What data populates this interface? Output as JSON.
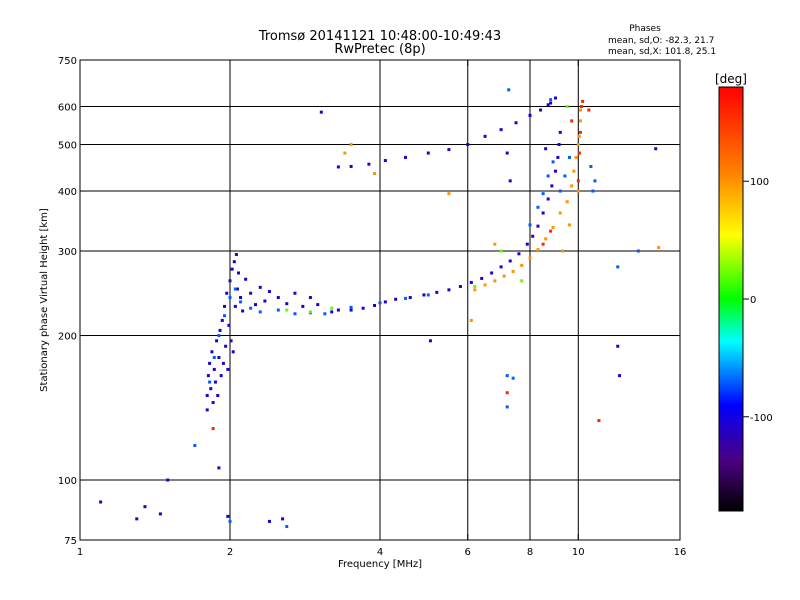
{
  "chart_data": {
    "type": "scatter",
    "title": "Tromsø 20141121 10:48:00-10:49:43",
    "subtitle": "RwPretec (8p)",
    "phase_info": {
      "heading": "Phases",
      "line1": "mean, sd,O: -82.3, 21.7",
      "line2": "mean, sd,X: 101.8, 25.1"
    },
    "xlabel": "Frequency [MHz]",
    "ylabel": "Stationary phase Virtual Height [km]",
    "xscale": "log",
    "yscale": "log",
    "xlim": [
      1,
      16
    ],
    "ylim": [
      75,
      750
    ],
    "xticks": [
      1,
      2,
      4,
      6,
      8,
      10,
      16
    ],
    "yticks": [
      75,
      100,
      200,
      300,
      400,
      500,
      600,
      750
    ],
    "grid_x": [
      2,
      4,
      6,
      8,
      10
    ],
    "grid_y": [
      100,
      200,
      300,
      400,
      500,
      600
    ],
    "colorbar": {
      "label": "[deg]",
      "range": [
        -180,
        180
      ],
      "ticks": [
        100,
        0,
        -100
      ]
    },
    "series": [
      {
        "phase": -110,
        "points": [
          [
            1.8,
            140
          ],
          [
            1.8,
            150
          ],
          [
            1.81,
            165
          ],
          [
            1.82,
            175
          ],
          [
            1.83,
            155
          ],
          [
            1.84,
            185
          ],
          [
            1.85,
            145
          ],
          [
            1.86,
            170
          ],
          [
            1.87,
            160
          ],
          [
            1.88,
            195
          ],
          [
            1.89,
            150
          ],
          [
            1.9,
            180
          ],
          [
            1.91,
            205
          ],
          [
            1.92,
            165
          ],
          [
            1.93,
            215
          ],
          [
            1.94,
            175
          ],
          [
            1.95,
            230
          ],
          [
            1.96,
            190
          ],
          [
            1.97,
            245
          ],
          [
            1.98,
            170
          ],
          [
            1.99,
            210
          ],
          [
            2.0,
            260
          ],
          [
            2.01,
            195
          ],
          [
            2.02,
            275
          ],
          [
            2.03,
            185
          ],
          [
            2.04,
            285
          ],
          [
            2.05,
            230
          ],
          [
            2.06,
            295
          ],
          [
            2.07,
            250
          ],
          [
            2.08,
            270
          ],
          [
            2.1,
            240
          ],
          [
            2.12,
            225
          ],
          [
            2.15,
            262
          ],
          [
            2.2,
            245
          ],
          [
            2.25,
            232
          ],
          [
            2.3,
            252
          ],
          [
            2.35,
            236
          ],
          [
            2.4,
            247
          ],
          [
            2.5,
            240
          ],
          [
            2.6,
            233
          ],
          [
            2.7,
            245
          ],
          [
            2.8,
            230
          ],
          [
            2.9,
            240
          ],
          [
            3.0,
            232
          ],
          [
            3.2,
            224
          ],
          [
            3.3,
            226
          ],
          [
            3.5,
            226
          ],
          [
            3.7,
            228
          ],
          [
            3.9,
            231
          ],
          [
            4.1,
            235
          ],
          [
            4.3,
            238
          ],
          [
            4.6,
            240
          ],
          [
            4.9,
            243
          ],
          [
            5.2,
            246
          ],
          [
            5.5,
            249
          ],
          [
            5.8,
            253
          ],
          [
            6.1,
            258
          ],
          [
            6.4,
            263
          ],
          [
            6.7,
            270
          ],
          [
            7.0,
            278
          ],
          [
            7.3,
            286
          ],
          [
            7.6,
            296
          ],
          [
            7.9,
            310
          ],
          [
            8.1,
            322
          ],
          [
            8.3,
            338
          ],
          [
            8.5,
            360
          ],
          [
            8.7,
            385
          ],
          [
            8.85,
            410
          ],
          [
            9.0,
            440
          ],
          [
            9.1,
            470
          ],
          [
            9.15,
            500
          ],
          [
            9.2,
            530
          ],
          [
            3.3,
            449
          ],
          [
            3.5,
            450
          ],
          [
            3.8,
            455
          ],
          [
            4.1,
            463
          ],
          [
            4.5,
            470
          ],
          [
            5.0,
            480
          ],
          [
            5.5,
            488
          ],
          [
            6.0,
            500
          ],
          [
            6.5,
            520
          ],
          [
            7.0,
            537
          ],
          [
            7.5,
            555
          ],
          [
            8.0,
            575
          ],
          [
            8.4,
            590
          ],
          [
            8.7,
            605
          ],
          [
            1.1,
            90
          ],
          [
            1.3,
            83
          ],
          [
            1.35,
            88
          ],
          [
            1.45,
            85
          ],
          [
            1.5,
            100
          ],
          [
            1.9,
            106
          ],
          [
            1.98,
            84
          ],
          [
            2.4,
            82
          ],
          [
            2.55,
            83
          ],
          [
            3.05,
            584
          ],
          [
            5.05,
            195
          ],
          [
            7.2,
            480
          ],
          [
            7.3,
            420
          ],
          [
            8.6,
            490
          ],
          [
            8.8,
            610
          ],
          [
            9.0,
            625
          ],
          [
            12.0,
            190
          ],
          [
            12.1,
            165
          ],
          [
            14.3,
            490
          ]
        ]
      },
      {
        "phase": -70,
        "points": [
          [
            1.82,
            160
          ],
          [
            1.86,
            180
          ],
          [
            1.9,
            200
          ],
          [
            1.95,
            220
          ],
          [
            2.0,
            240
          ],
          [
            2.05,
            250
          ],
          [
            2.1,
            235
          ],
          [
            2.2,
            228
          ],
          [
            2.3,
            224
          ],
          [
            2.5,
            226
          ],
          [
            2.7,
            222
          ],
          [
            2.9,
            223
          ],
          [
            3.1,
            222
          ],
          [
            3.5,
            229
          ],
          [
            4.0,
            234
          ],
          [
            4.5,
            239
          ],
          [
            5.0,
            243
          ],
          [
            8.0,
            340
          ],
          [
            8.3,
            370
          ],
          [
            8.5,
            395
          ],
          [
            8.7,
            430
          ],
          [
            8.9,
            460
          ],
          [
            9.2,
            400
          ],
          [
            9.4,
            430
          ],
          [
            9.6,
            470
          ],
          [
            10.6,
            450
          ],
          [
            10.7,
            400
          ],
          [
            10.8,
            420
          ],
          [
            1.7,
            118
          ],
          [
            2.0,
            82
          ],
          [
            2.6,
            80
          ],
          [
            7.2,
            165
          ],
          [
            7.2,
            142
          ],
          [
            7.4,
            163
          ],
          [
            7.25,
            650
          ],
          [
            8.8,
            620
          ],
          [
            13.2,
            300
          ],
          [
            12.0,
            278
          ]
        ]
      },
      {
        "phase": 20,
        "points": [
          [
            2.6,
            226
          ],
          [
            2.9,
            224
          ],
          [
            3.2,
            228
          ],
          [
            6.2,
            253
          ],
          [
            7.0,
            300
          ],
          [
            7.7,
            260
          ],
          [
            9.5,
            600
          ]
        ]
      },
      {
        "phase": 100,
        "points": [
          [
            6.2,
            249
          ],
          [
            6.5,
            255
          ],
          [
            6.8,
            260
          ],
          [
            7.1,
            266
          ],
          [
            7.4,
            272
          ],
          [
            7.7,
            280
          ],
          [
            8.0,
            290
          ],
          [
            8.3,
            302
          ],
          [
            8.6,
            318
          ],
          [
            8.9,
            336
          ],
          [
            9.2,
            360
          ],
          [
            9.5,
            380
          ],
          [
            9.7,
            410
          ],
          [
            9.8,
            440
          ],
          [
            9.9,
            470
          ],
          [
            10.0,
            500
          ],
          [
            10.05,
            520
          ],
          [
            10.1,
            560
          ],
          [
            10.1,
            590
          ],
          [
            9.3,
            300
          ],
          [
            9.6,
            340
          ],
          [
            10.0,
            400
          ],
          [
            6.1,
            215
          ],
          [
            3.4,
            480
          ],
          [
            3.5,
            500
          ],
          [
            3.9,
            435
          ],
          [
            5.5,
            395
          ],
          [
            6.8,
            310
          ],
          [
            14.5,
            305
          ]
        ]
      },
      {
        "phase": 160,
        "points": [
          [
            10.0,
            420
          ],
          [
            10.05,
            480
          ],
          [
            10.1,
            530
          ],
          [
            10.15,
            600
          ],
          [
            10.2,
            615
          ],
          [
            8.5,
            310
          ],
          [
            8.8,
            330
          ],
          [
            7.2,
            152
          ],
          [
            11.0,
            133
          ],
          [
            1.85,
            128
          ],
          [
            9.7,
            560
          ],
          [
            10.5,
            590
          ]
        ]
      }
    ]
  }
}
